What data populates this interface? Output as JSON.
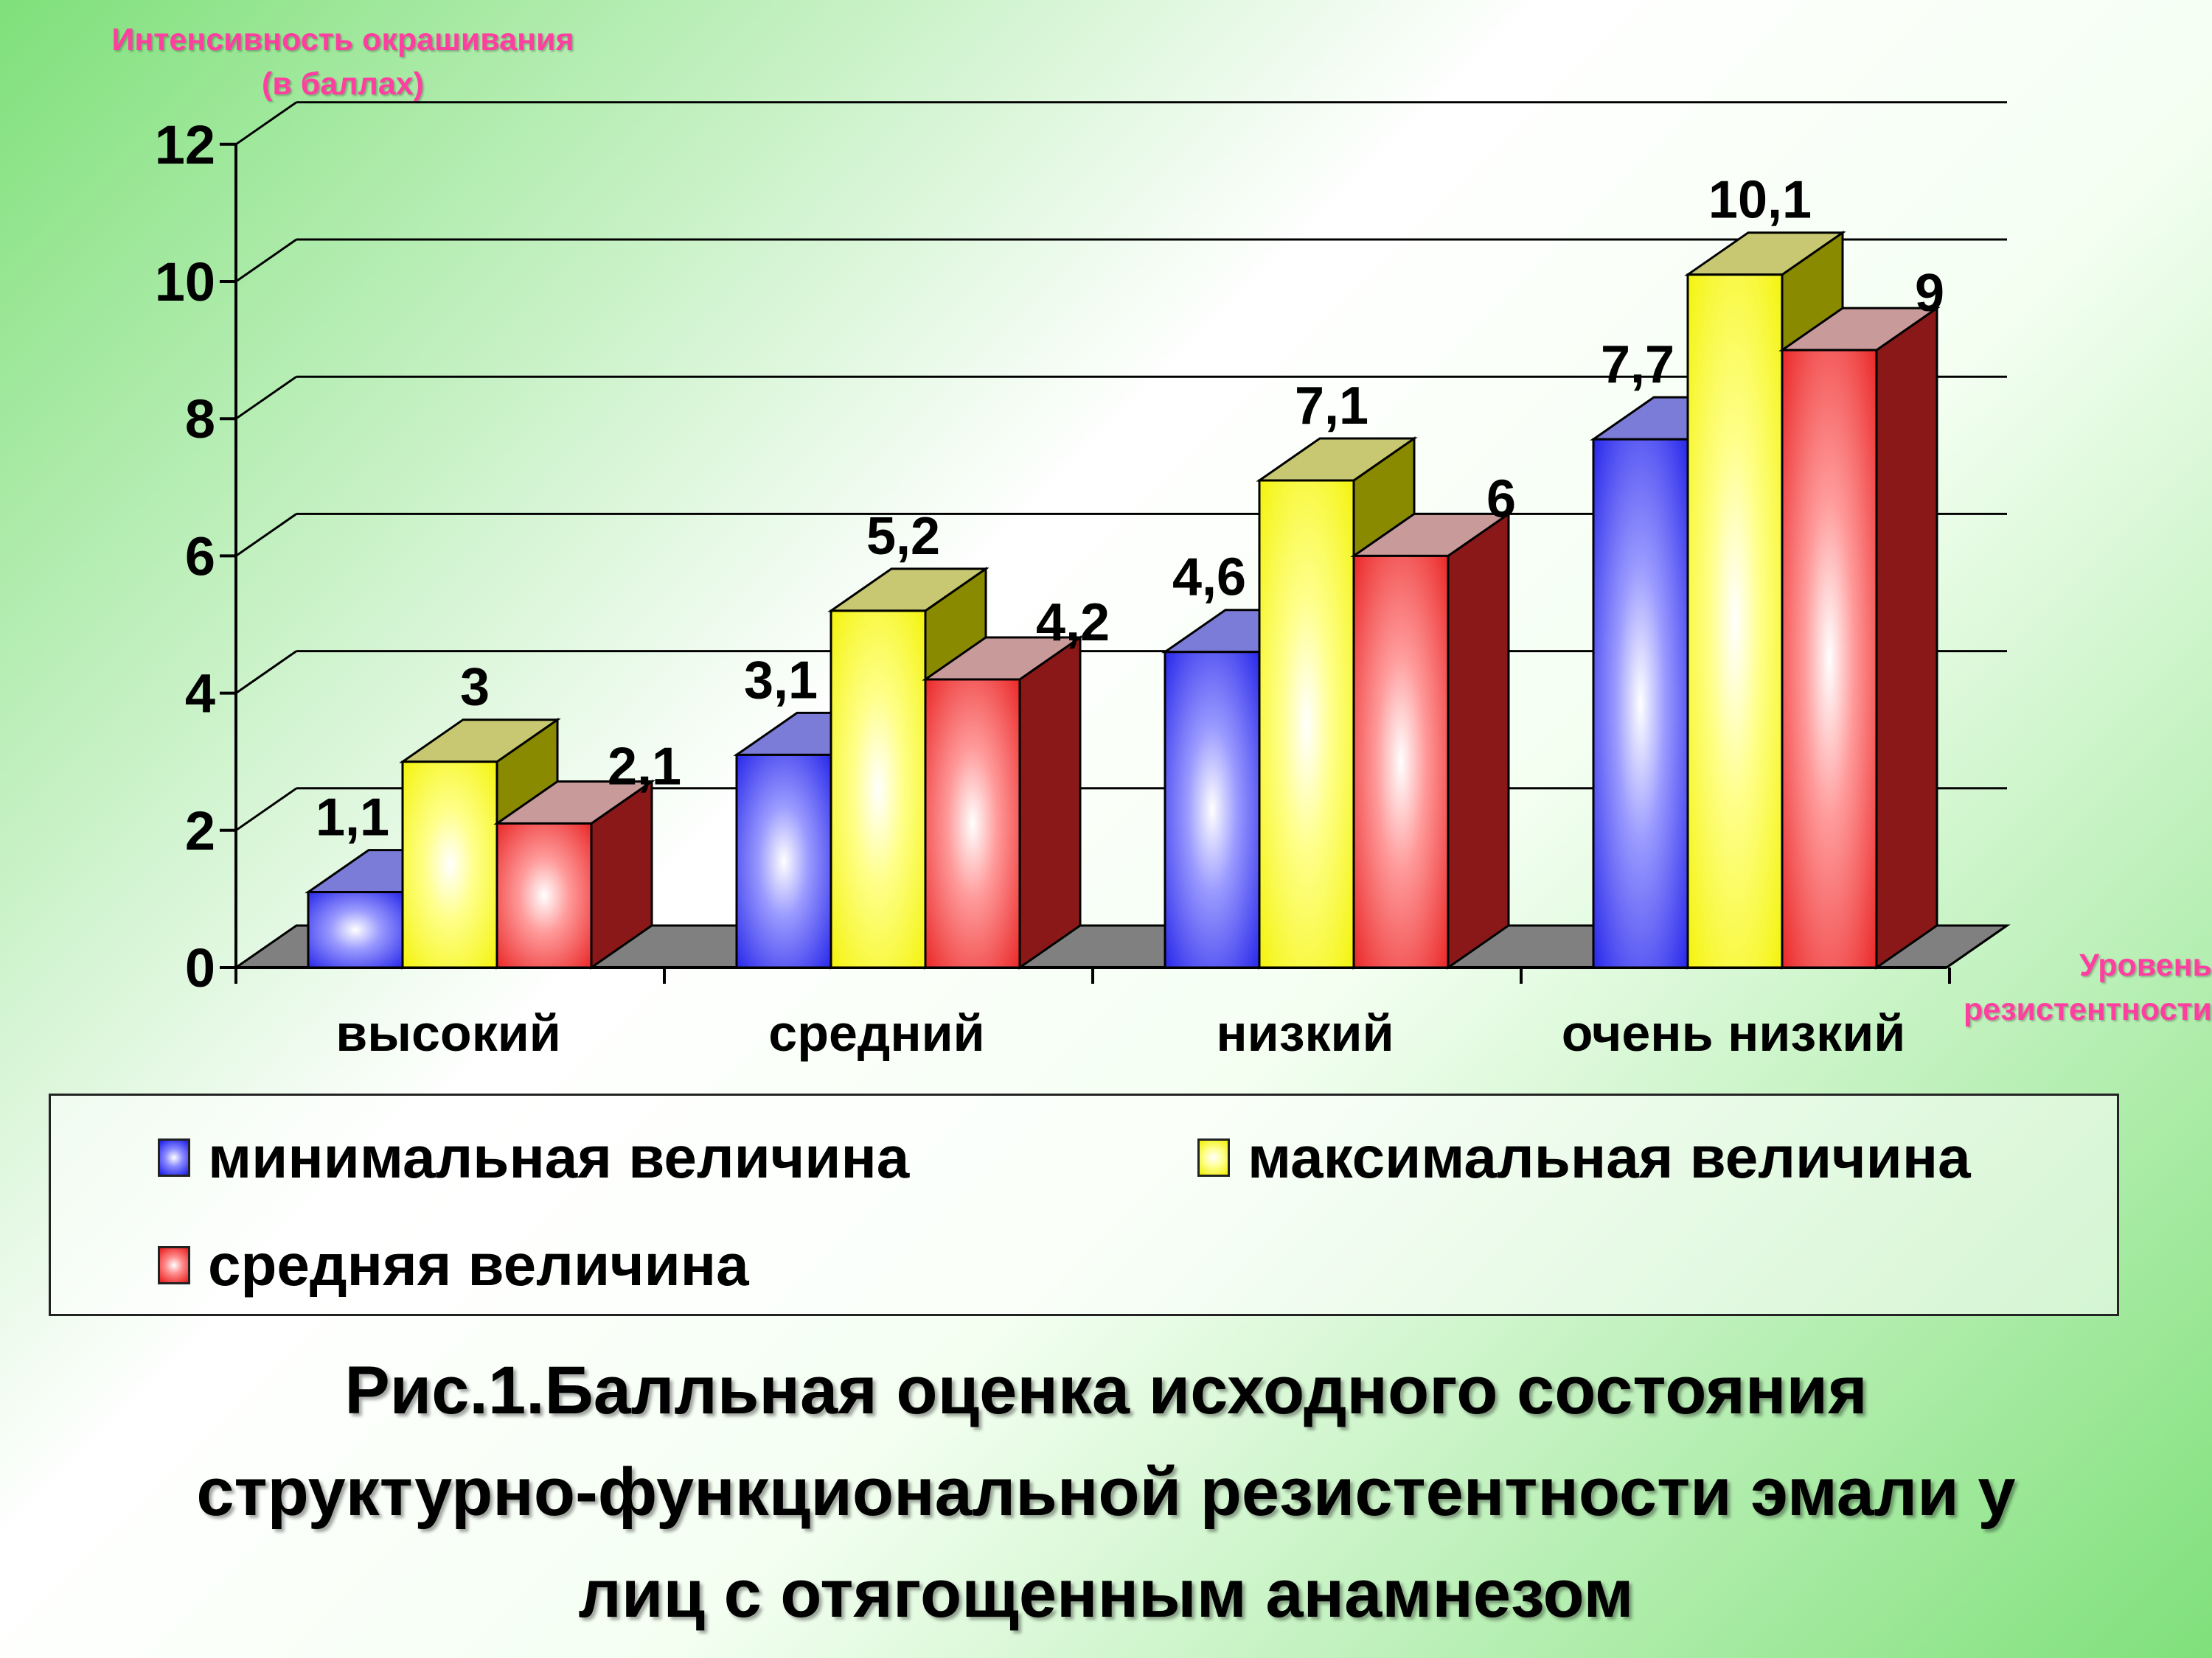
{
  "chart_data": {
    "type": "bar",
    "title": "",
    "xlabel": "Уровень резистентности",
    "ylabel": "Интенсивность окрашивания (в баллах)",
    "categories": [
      "высокий",
      "средний",
      "низкий",
      "очень низкий"
    ],
    "series": [
      {
        "name": "минимальная величина",
        "values": [
          1.1,
          3.1,
          4.6,
          7.7
        ],
        "labels": [
          "1,1",
          "3,1",
          "4,6",
          "7,7"
        ],
        "color": "#2020ee"
      },
      {
        "name": "максимальная величина",
        "values": [
          3,
          5.2,
          7.1,
          10.1
        ],
        "labels": [
          "3",
          "5,2",
          "7,1",
          "10,1"
        ],
        "color": "#ffff22"
      },
      {
        "name": "средняя величина",
        "values": [
          2.1,
          4.2,
          6,
          9
        ],
        "labels": [
          "2,1",
          "4,2",
          "6",
          "9"
        ],
        "color": "#ee1c1c"
      }
    ],
    "ylim": [
      0,
      12
    ],
    "yticks": [
      0,
      2,
      4,
      6,
      8,
      10,
      12
    ],
    "grid": true,
    "legend_position": "bottom"
  },
  "axis": {
    "y_title_line1": "Интенсивность окрашивания",
    "y_title_line2": "(в баллах)",
    "x_title_line1": "Уровень",
    "x_title_line2": "резистентности"
  },
  "legend": {
    "min_label": "минимальная величина",
    "max_label": "максимальная величина",
    "avg_label": "средняя величина"
  },
  "caption": {
    "line1": "Рис.1.Балльная оценка исходного состояния",
    "line2": "структурно-функциональной резистентности эмали у",
    "line3": "лиц с отягощенным анамнезом"
  }
}
